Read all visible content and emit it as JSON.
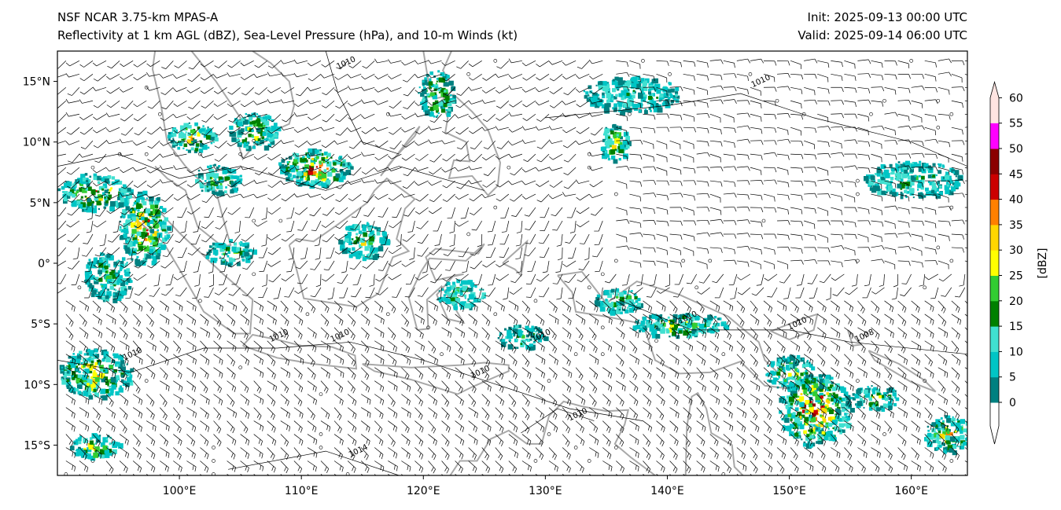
{
  "header": {
    "title": "NSF NCAR 3.75-km MPAS-A",
    "subtitle": "Reflectivity at 1 km AGL (dBZ), Sea-Level Pressure (hPa), and 10-m Winds (kt)",
    "init": "Init: 2025-09-13 00:00 UTC",
    "valid": "Valid: 2025-09-14 06:00 UTC"
  },
  "map": {
    "lon_range": [
      90,
      164.6
    ],
    "lat_range": [
      -17.5,
      17.5
    ],
    "lat_ticks": [
      {
        "v": 15,
        "label": "15°N"
      },
      {
        "v": 10,
        "label": "10°N"
      },
      {
        "v": 5,
        "label": "5°N"
      },
      {
        "v": 0,
        "label": "0°"
      },
      {
        "v": -5,
        "label": "5°S"
      },
      {
        "v": -10,
        "label": "10°S"
      },
      {
        "v": -15,
        "label": "15°S"
      }
    ],
    "lon_ticks": [
      {
        "v": 100,
        "label": "100°E"
      },
      {
        "v": 110,
        "label": "110°E"
      },
      {
        "v": 120,
        "label": "120°E"
      },
      {
        "v": 130,
        "label": "130°E"
      },
      {
        "v": 140,
        "label": "140°E"
      },
      {
        "v": 150,
        "label": "150°E"
      },
      {
        "v": 160,
        "label": "160°E"
      }
    ],
    "contour_labels": [
      {
        "lon": 113,
        "lat": 16,
        "text": "1010"
      },
      {
        "lon": 147,
        "lat": 14.5,
        "text": "1010"
      },
      {
        "lon": 95.5,
        "lat": -8,
        "text": "1010"
      },
      {
        "lon": 107.5,
        "lat": -6.5,
        "text": "1010"
      },
      {
        "lon": 112.5,
        "lat": -6.5,
        "text": "1010"
      },
      {
        "lon": 129,
        "lat": -6.5,
        "text": "1010"
      },
      {
        "lon": 124,
        "lat": -9.5,
        "text": "1010"
      },
      {
        "lon": 141,
        "lat": -5,
        "text": "1010"
      },
      {
        "lon": 150,
        "lat": -5.5,
        "text": "1010"
      },
      {
        "lon": 155.5,
        "lat": -6.5,
        "text": "1008"
      },
      {
        "lon": 132,
        "lat": -13,
        "text": "1010"
      },
      {
        "lon": 114,
        "lat": -16,
        "text": "1014"
      }
    ]
  },
  "colorbar": {
    "label": "[dBZ]",
    "ticks": [
      "0",
      "5",
      "10",
      "15",
      "20",
      "25",
      "30",
      "35",
      "40",
      "45",
      "50",
      "55",
      "60"
    ],
    "colors": [
      "#008080",
      "#00c5c5",
      "#40e0d0",
      "#008000",
      "#32cd32",
      "#ffff00",
      "#ffd700",
      "#ff8000",
      "#cc0000",
      "#8b0000",
      "#ff00ff",
      "#ffe4e1"
    ],
    "under_color": "#ffffff",
    "over_color": "#ffe4e1"
  }
}
